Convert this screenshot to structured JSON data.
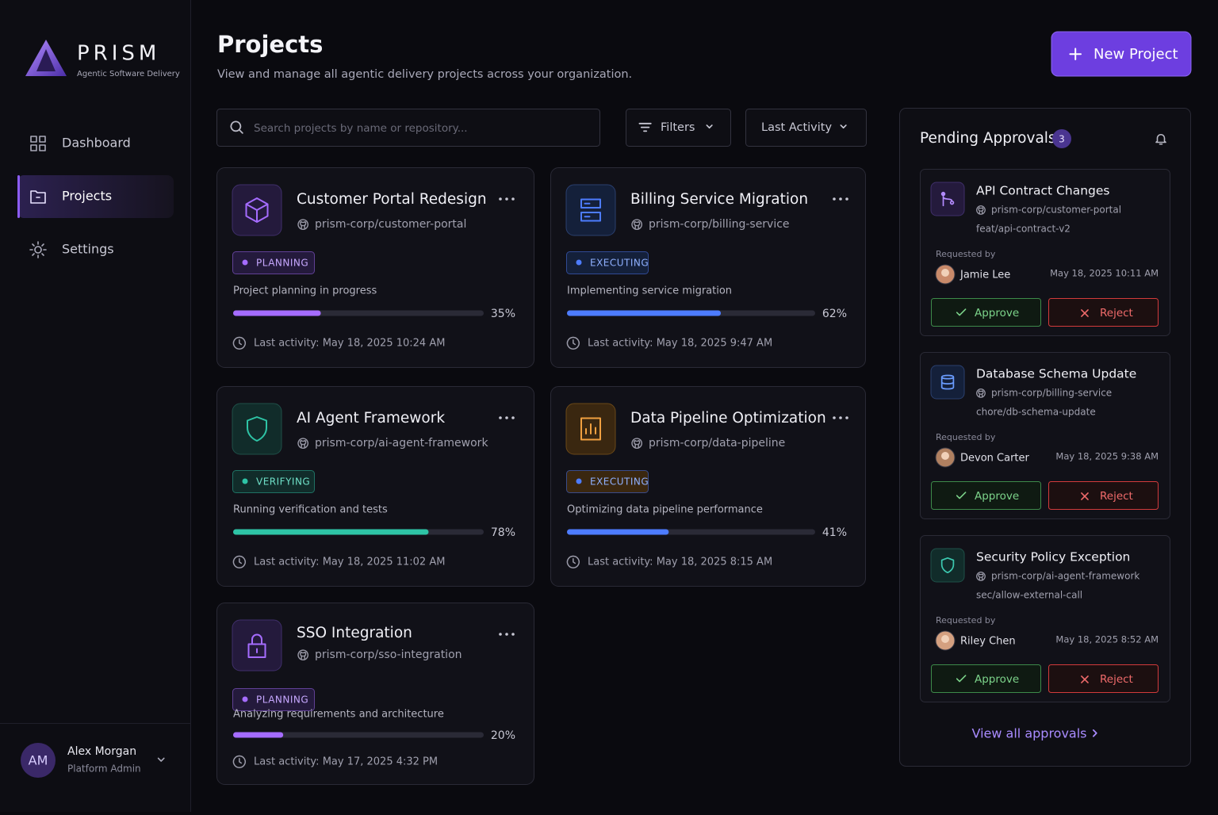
{
  "sidebar": {
    "brand": {
      "name": "PRISM",
      "tagline": "Agentic Software Delivery"
    },
    "nav": [
      "Dashboard",
      "Projects",
      "Settings"
    ],
    "user": {
      "initials": "AM",
      "name": "Alex Morgan",
      "role": "Platform Admin"
    }
  },
  "header": {
    "title": "Projects",
    "subtitle": "View and manage all agentic delivery projects across your organization.",
    "button": "New Project"
  },
  "toolbar": {
    "search_placeholder": "Search projects by name or repository...",
    "filters": "Filters",
    "sort": "Last Activity"
  },
  "projects": [
    {
      "name": "Customer Portal Redesign",
      "repo": "prism-corp/customer-portal",
      "status": "PLANNING",
      "color": "#a56cff",
      "description": "Project planning in progress",
      "progress": {
        "value": 35,
        "label": "35%"
      },
      "last_activity": "Last activity: May 18, 2025 10:24 AM"
    },
    {
      "name": "Billing Service Migration",
      "repo": "prism-corp/billing-service",
      "status": "EXECUTING",
      "color": "#4d7cff",
      "description": "Implementing service migration",
      "progress": {
        "value": 62,
        "label": "62%"
      },
      "last_activity": "Last activity: May 18, 2025 9:47 AM"
    },
    {
      "name": "AI Agent Framework",
      "repo": "prism-corp/ai-agent-framework",
      "status": "VERIFYING",
      "color": "#2ec4a6",
      "description": "Running verification and tests",
      "progress": {
        "value": 78,
        "label": "78%"
      },
      "last_activity": "Last activity: May 18, 2025 11:02 AM"
    },
    {
      "name": "Data Pipeline Optimization",
      "repo": "prism-corp/data-pipeline",
      "status": "EXECUTING",
      "color": "#4d7cff",
      "description": "Optimizing data pipeline performance",
      "progress": {
        "value": 41,
        "label": "41%"
      },
      "last_activity": "Last activity: May 18, 2025 8:15 AM"
    },
    {
      "name": "SSO Integration",
      "repo": "prism-corp/sso-integration",
      "status": "PLANNING",
      "color": "#a56cff",
      "description": "Analyzing requirements and architecture",
      "progress": {
        "value": 20,
        "label": "20%"
      },
      "last_activity": "Last activity: May 17, 2025 4:32 PM"
    }
  ],
  "approvals": {
    "title": "Pending Approvals",
    "count": 3,
    "items": [
      {
        "title": "API Contract Changes",
        "repo": "prism-corp/customer-portal",
        "branch": "feat/api-contract-v2",
        "requested_by": "Requested by",
        "requester": "Jamie Lee",
        "date": "May 18, 2025 10:11 AM",
        "approve": "Approve",
        "reject": "Reject"
      },
      {
        "title": "Database Schema Update",
        "repo": "prism-corp/billing-service",
        "branch": "chore/db-schema-update",
        "requested_by": "Requested by",
        "requester": "Devon Carter",
        "date": "May 18, 2025 9:38 AM",
        "approve": "Approve",
        "reject": "Reject"
      },
      {
        "title": "Security Policy Exception",
        "repo": "prism-corp/ai-agent-framework",
        "branch": "sec/allow-external-call",
        "requested_by": "Requested by",
        "requester": "Riley Chen",
        "date": "May 18, 2025 8:52 AM",
        "approve": "Approve",
        "reject": "Reject"
      }
    ],
    "view_all": "View all approvals"
  }
}
